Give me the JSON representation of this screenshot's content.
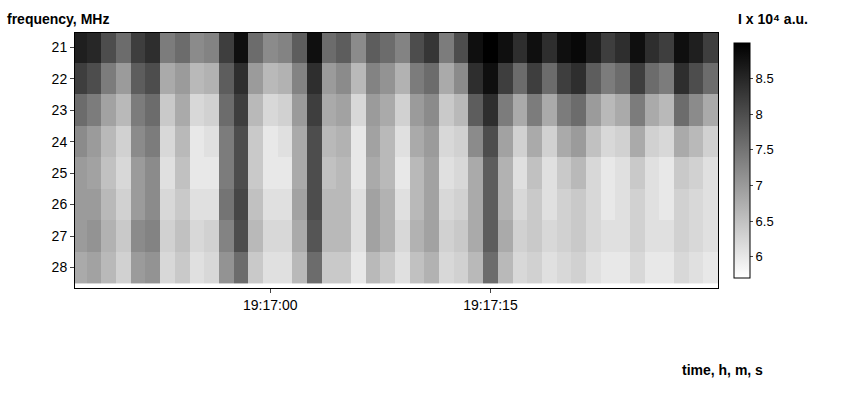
{
  "chart_data": {
    "type": "heatmap",
    "y_title": "frequency, MHz",
    "x_title": "time, h, m, s",
    "colorbar_title": "I x 10⁴ a.u.",
    "x": [
      69407,
      69408,
      69409,
      69410,
      69411,
      69412,
      69413,
      69414,
      69415,
      69416,
      69417,
      69418,
      69419,
      69420,
      69421,
      69422,
      69423,
      69424,
      69425,
      69426,
      69427,
      69428,
      69429,
      69430,
      69431,
      69432,
      69433,
      69434,
      69435,
      69436,
      69437,
      69438,
      69439,
      69440,
      69441,
      69442,
      69443,
      69444,
      69445,
      69446,
      69447,
      69448,
      69449,
      69450
    ],
    "y": [
      21,
      22,
      23,
      24,
      25,
      26,
      27,
      28
    ],
    "z": [
      [
        8.6,
        8.5,
        8.0,
        7.6,
        8.2,
        8.4,
        7.4,
        7.6,
        7.2,
        7.3,
        8.2,
        8.8,
        7.6,
        7.2,
        7.3,
        7.8,
        8.8,
        7.6,
        7.8,
        7.2,
        7.8,
        7.6,
        7.3,
        8.0,
        8.3,
        7.4,
        8.0,
        8.8,
        9.0,
        8.8,
        8.4,
        8.8,
        8.4,
        8.8,
        8.9,
        8.6,
        8.2,
        8.4,
        8.8,
        8.4,
        8.2,
        8.8,
        8.6,
        8.2
      ],
      [
        8.2,
        8.0,
        7.4,
        7.0,
        7.8,
        8.0,
        6.8,
        7.0,
        6.6,
        6.7,
        7.8,
        8.4,
        7.0,
        6.6,
        6.7,
        7.3,
        8.4,
        7.0,
        7.2,
        6.6,
        7.3,
        7.1,
        6.7,
        7.4,
        7.6,
        6.8,
        7.2,
        8.4,
        8.8,
        8.2,
        7.6,
        8.2,
        7.6,
        8.2,
        8.4,
        7.8,
        7.4,
        7.6,
        8.2,
        7.6,
        7.4,
        8.4,
        8.0,
        7.6
      ],
      [
        7.6,
        7.4,
        6.9,
        6.6,
        7.4,
        7.6,
        6.4,
        6.8,
        6.2,
        6.3,
        7.6,
        8.2,
        6.6,
        6.2,
        6.3,
        7.0,
        8.2,
        6.8,
        6.9,
        6.2,
        7.0,
        6.8,
        6.3,
        7.0,
        7.2,
        6.4,
        6.6,
        7.8,
        8.4,
        7.4,
        6.8,
        7.4,
        6.8,
        7.4,
        7.6,
        7.0,
        6.6,
        6.8,
        7.4,
        6.8,
        6.6,
        7.6,
        7.2,
        6.8
      ],
      [
        7.2,
        7.0,
        6.6,
        6.3,
        7.2,
        7.4,
        6.2,
        6.6,
        6.0,
        6.1,
        7.4,
        8.0,
        6.4,
        6.0,
        6.1,
        6.8,
        8.0,
        6.6,
        6.7,
        6.0,
        6.9,
        6.6,
        6.1,
        6.8,
        7.0,
        6.2,
        6.3,
        7.2,
        8.0,
        6.9,
        6.3,
        6.8,
        6.3,
        6.8,
        7.0,
        6.5,
        6.2,
        6.3,
        6.8,
        6.3,
        6.2,
        6.8,
        6.6,
        6.3
      ],
      [
        7.0,
        6.9,
        6.5,
        6.2,
        7.0,
        7.2,
        6.1,
        6.5,
        6.0,
        6.0,
        7.4,
        8.0,
        6.4,
        6.0,
        6.0,
        6.8,
        8.0,
        6.5,
        6.6,
        6.0,
        6.8,
        6.6,
        6.0,
        6.6,
        6.9,
        6.1,
        6.2,
        6.8,
        7.8,
        6.7,
        6.1,
        6.5,
        6.1,
        6.4,
        6.6,
        6.2,
        6.0,
        6.1,
        6.4,
        6.1,
        6.0,
        6.4,
        6.3,
        6.1
      ],
      [
        7.0,
        7.0,
        6.6,
        6.3,
        7.0,
        7.2,
        6.2,
        6.4,
        6.1,
        6.1,
        7.5,
        8.1,
        6.5,
        6.1,
        6.1,
        6.9,
        8.0,
        6.6,
        6.6,
        6.1,
        6.9,
        6.7,
        6.1,
        6.6,
        6.9,
        6.2,
        6.3,
        6.8,
        7.8,
        6.7,
        6.2,
        6.4,
        6.1,
        6.3,
        6.4,
        6.2,
        6.0,
        6.1,
        6.3,
        6.1,
        6.0,
        6.3,
        6.2,
        6.1
      ],
      [
        7.0,
        7.1,
        6.7,
        6.4,
        7.2,
        7.3,
        6.3,
        6.5,
        6.2,
        6.3,
        7.3,
        8.0,
        6.6,
        6.2,
        6.2,
        6.8,
        7.9,
        6.6,
        6.6,
        6.1,
        6.9,
        6.7,
        6.2,
        6.7,
        6.9,
        6.3,
        6.4,
        6.8,
        7.8,
        6.8,
        6.3,
        6.4,
        6.2,
        6.3,
        6.4,
        6.2,
        6.1,
        6.1,
        6.3,
        6.1,
        6.1,
        6.3,
        6.2,
        6.1
      ],
      [
        6.8,
        6.9,
        6.6,
        6.3,
        7.0,
        7.1,
        6.2,
        6.4,
        6.1,
        6.2,
        7.1,
        7.6,
        6.4,
        6.1,
        6.1,
        6.6,
        7.6,
        6.4,
        6.4,
        6.0,
        6.6,
        6.4,
        6.1,
        6.5,
        6.7,
        6.2,
        6.3,
        6.6,
        7.6,
        6.6,
        6.2,
        6.3,
        6.1,
        6.2,
        6.3,
        6.1,
        6.0,
        6.0,
        6.2,
        6.0,
        6.0,
        6.2,
        6.1,
        6.0
      ]
    ],
    "xlim": [
      69406.7,
      69450.5
    ],
    "xticks": [
      {
        "value": 69420,
        "label": "19:17:00"
      },
      {
        "value": 69435,
        "label": "19:17:15"
      }
    ],
    "ylim": [
      28.65,
      20.55
    ],
    "yticks": [
      21,
      22,
      23,
      24,
      25,
      26,
      27,
      28
    ],
    "zlim": [
      5.7,
      9.0
    ],
    "zticks": [
      6,
      6.5,
      7,
      7.5,
      8,
      8.5
    ]
  }
}
